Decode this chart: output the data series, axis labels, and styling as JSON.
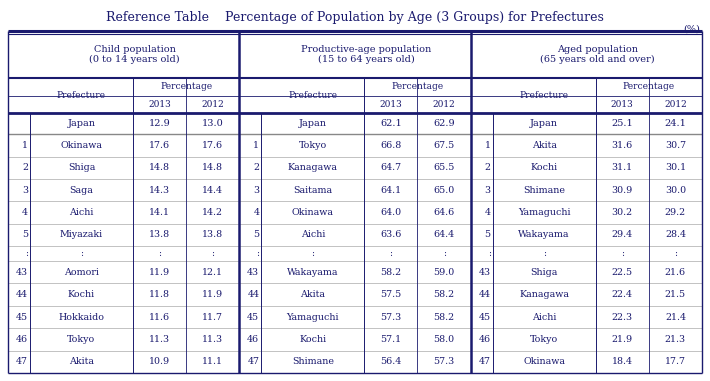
{
  "title": "Reference Table    Percentage of Population by Age (3 Groups) for Prefectures",
  "unit_label": "(%)",
  "group_headers": [
    "Child population\n(0 to 14 years old)",
    "Productive-age population\n(15 to 64 years old)",
    "Aged population\n(65 years old and over)"
  ],
  "rows": [
    [
      "",
      "Japan",
      "12.9",
      "13.0",
      "",
      "Japan",
      "62.1",
      "62.9",
      "",
      "Japan",
      "25.1",
      "24.1"
    ],
    [
      "1",
      "Okinawa",
      "17.6",
      "17.6",
      "1",
      "Tokyo",
      "66.8",
      "67.5",
      "1",
      "Akita",
      "31.6",
      "30.7"
    ],
    [
      "2",
      "Shiga",
      "14.8",
      "14.8",
      "2",
      "Kanagawa",
      "64.7",
      "65.5",
      "2",
      "Kochi",
      "31.1",
      "30.1"
    ],
    [
      "3",
      "Saga",
      "14.3",
      "14.4",
      "3",
      "Saitama",
      "64.1",
      "65.0",
      "3",
      "Shimane",
      "30.9",
      "30.0"
    ],
    [
      "4",
      "Aichi",
      "14.1",
      "14.2",
      "4",
      "Okinawa",
      "64.0",
      "64.6",
      "4",
      "Yamaguchi",
      "30.2",
      "29.2"
    ],
    [
      "5",
      "Miyazaki",
      "13.8",
      "13.8",
      "5",
      "Aichi",
      "63.6",
      "64.4",
      "5",
      "Wakayama",
      "29.4",
      "28.4"
    ],
    [
      ":",
      ":",
      ":",
      ":",
      ":",
      ":",
      ":",
      ":",
      ":",
      ":",
      ":",
      ":"
    ],
    [
      "43",
      "Aomori",
      "11.9",
      "12.1",
      "43",
      "Wakayama",
      "58.2",
      "59.0",
      "43",
      "Shiga",
      "22.5",
      "21.6"
    ],
    [
      "44",
      "Kochi",
      "11.8",
      "11.9",
      "44",
      "Akita",
      "57.5",
      "58.2",
      "44",
      "Kanagawa",
      "22.4",
      "21.5"
    ],
    [
      "45",
      "Hokkaido",
      "11.6",
      "11.7",
      "45",
      "Yamaguchi",
      "57.3",
      "58.2",
      "45",
      "Aichi",
      "22.3",
      "21.4"
    ],
    [
      "46",
      "Tokyo",
      "11.3",
      "11.3",
      "46",
      "Kochi",
      "57.1",
      "58.0",
      "46",
      "Tokyo",
      "21.9",
      "21.3"
    ],
    [
      "47",
      "Akita",
      "10.9",
      "11.1",
      "47",
      "Shimane",
      "56.4",
      "57.3",
      "47",
      "Okinawa",
      "18.4",
      "17.7"
    ]
  ],
  "bg_color": "#ffffff",
  "text_color": "#1a1a6e",
  "line_color": "#1a1a6e"
}
